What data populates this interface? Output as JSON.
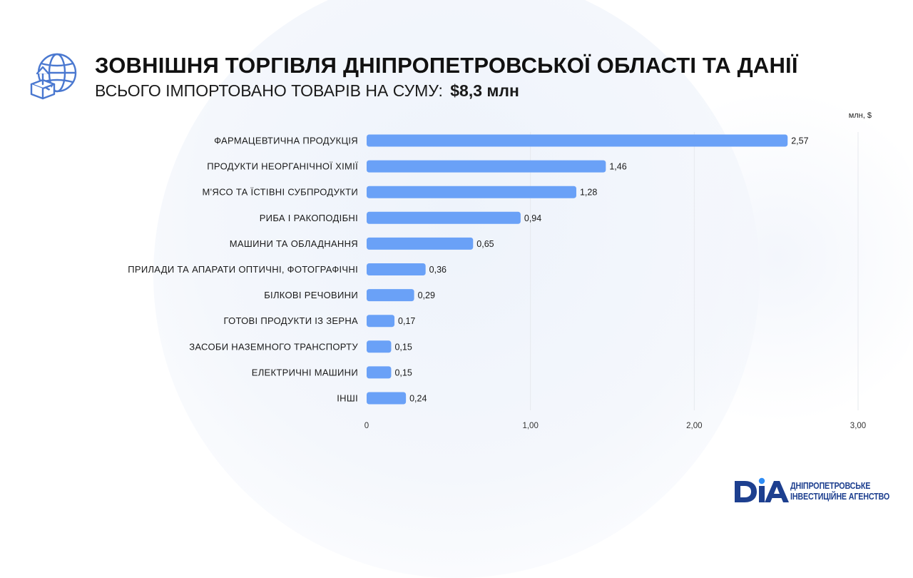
{
  "header": {
    "title": "ЗОВНІШНЯ ТОРГІВЛЯ ДНІПРОПЕТРОВСЬКОЇ ОБЛАСТІ ТА ДАНІЇ",
    "subtitle_prefix": "ВСЬОГО ІМПОРТОВАНО ТОВАРІВ НА СУМУ:",
    "subtitle_amount": "$8,3 млн",
    "icon": "globe-import-box-icon"
  },
  "colors": {
    "bar": "#6aa1f7",
    "grid": "#e6e9ee",
    "brand": "#1d3f8f",
    "icon": "#4a78d0"
  },
  "chart_data": {
    "type": "bar",
    "orientation": "horizontal",
    "unit_label": "млн, $",
    "categories": [
      "ФАРМАЦЕВТИЧНА ПРОДУКЦІЯ",
      "ПРОДУКТИ НЕОРГАНІЧНОЇ ХІМІЇ",
      "М'ЯСО ТА ЇСТІВНІ СУБПРОДУКТИ",
      "РИБА І РАКОПОДІБНІ",
      "МАШИНИ ТА ОБЛАДНАННЯ",
      "ПРИЛАДИ ТА АПАРАТИ ОПТИЧНІ, ФОТОГРАФІЧНІ",
      "БІЛКОВІ РЕЧОВИНИ",
      "ГОТОВІ ПРОДУКТИ ІЗ ЗЕРНА",
      "ЗАСОБИ НАЗЕМНОГО ТРАНСПОРТУ",
      "ЕЛЕКТРИЧНІ МАШИНИ",
      "ІНШІ"
    ],
    "values": [
      2.57,
      1.46,
      1.28,
      0.94,
      0.65,
      0.36,
      0.29,
      0.17,
      0.15,
      0.15,
      0.24
    ],
    "value_labels": [
      "2,57",
      "1,46",
      "1,28",
      "0,94",
      "0,65",
      "0,36",
      "0,29",
      "0,17",
      "0,15",
      "0,15",
      "0,24"
    ],
    "xlim": [
      0,
      3
    ],
    "xticks": [
      0,
      1,
      2,
      3
    ],
    "xtick_labels": [
      "0",
      "1,00",
      "2,00",
      "3,00"
    ],
    "grid": true
  },
  "logo": {
    "mark": "DIA",
    "line1": "ДНІПРОПЕТРОВСЬКЕ",
    "line2": "ІНВЕСТИЦІЙНЕ АГЕНСТВО"
  }
}
